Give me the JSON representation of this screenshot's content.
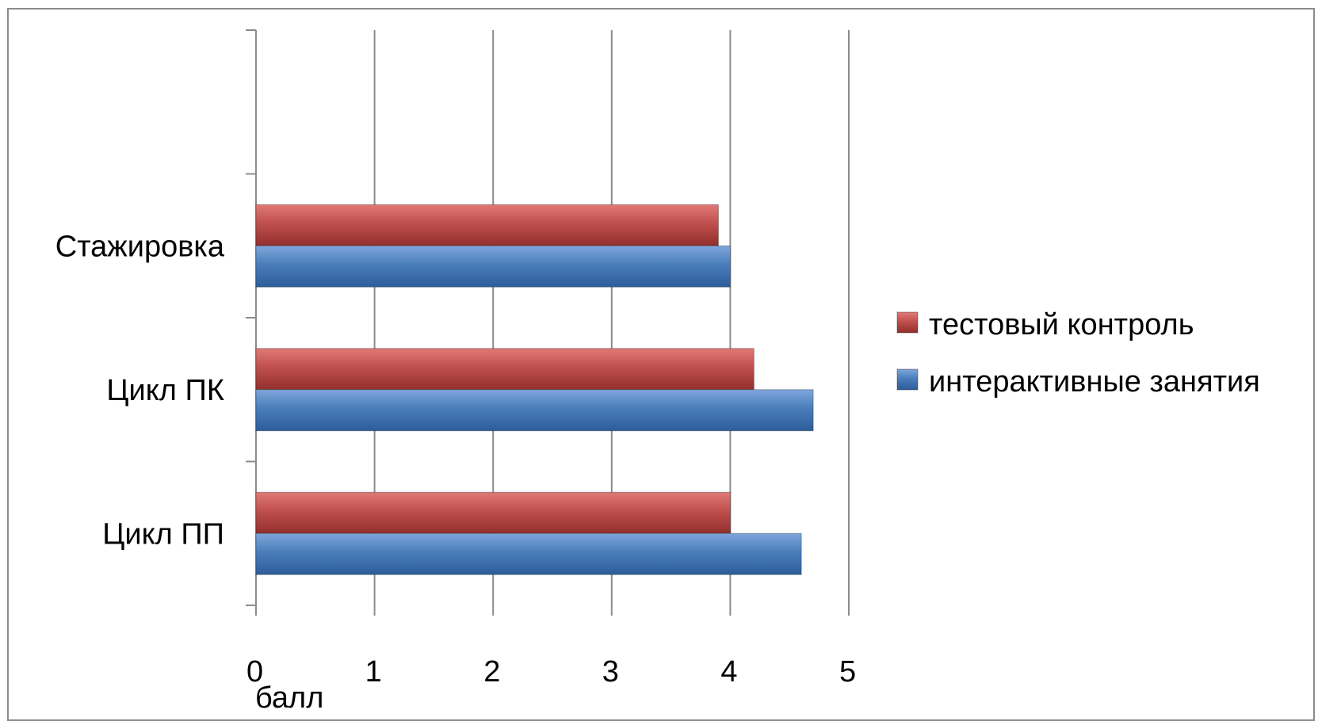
{
  "chart_data": {
    "type": "bar",
    "orientation": "horizontal",
    "categories": [
      "Цикл ПП",
      "Цикл ПК",
      "Стажировка"
    ],
    "series": [
      {
        "name": "интерактивные занятия",
        "values": [
          4.6,
          4.7,
          4.0
        ],
        "color": "#4a7ebb"
      },
      {
        "name": "тестовый контроль",
        "values": [
          4.0,
          4.2,
          3.9
        ],
        "color": "#c0504d"
      }
    ],
    "legend_order": [
      "тестовый контроль",
      "интерактивные занятия"
    ],
    "xlim": [
      0,
      5
    ],
    "xticks": [
      "0",
      "1",
      "2",
      "3",
      "4",
      "5"
    ],
    "xlabel": "балл",
    "ylabel": "",
    "title": "",
    "grid": "vertical",
    "legend_position": "right"
  }
}
